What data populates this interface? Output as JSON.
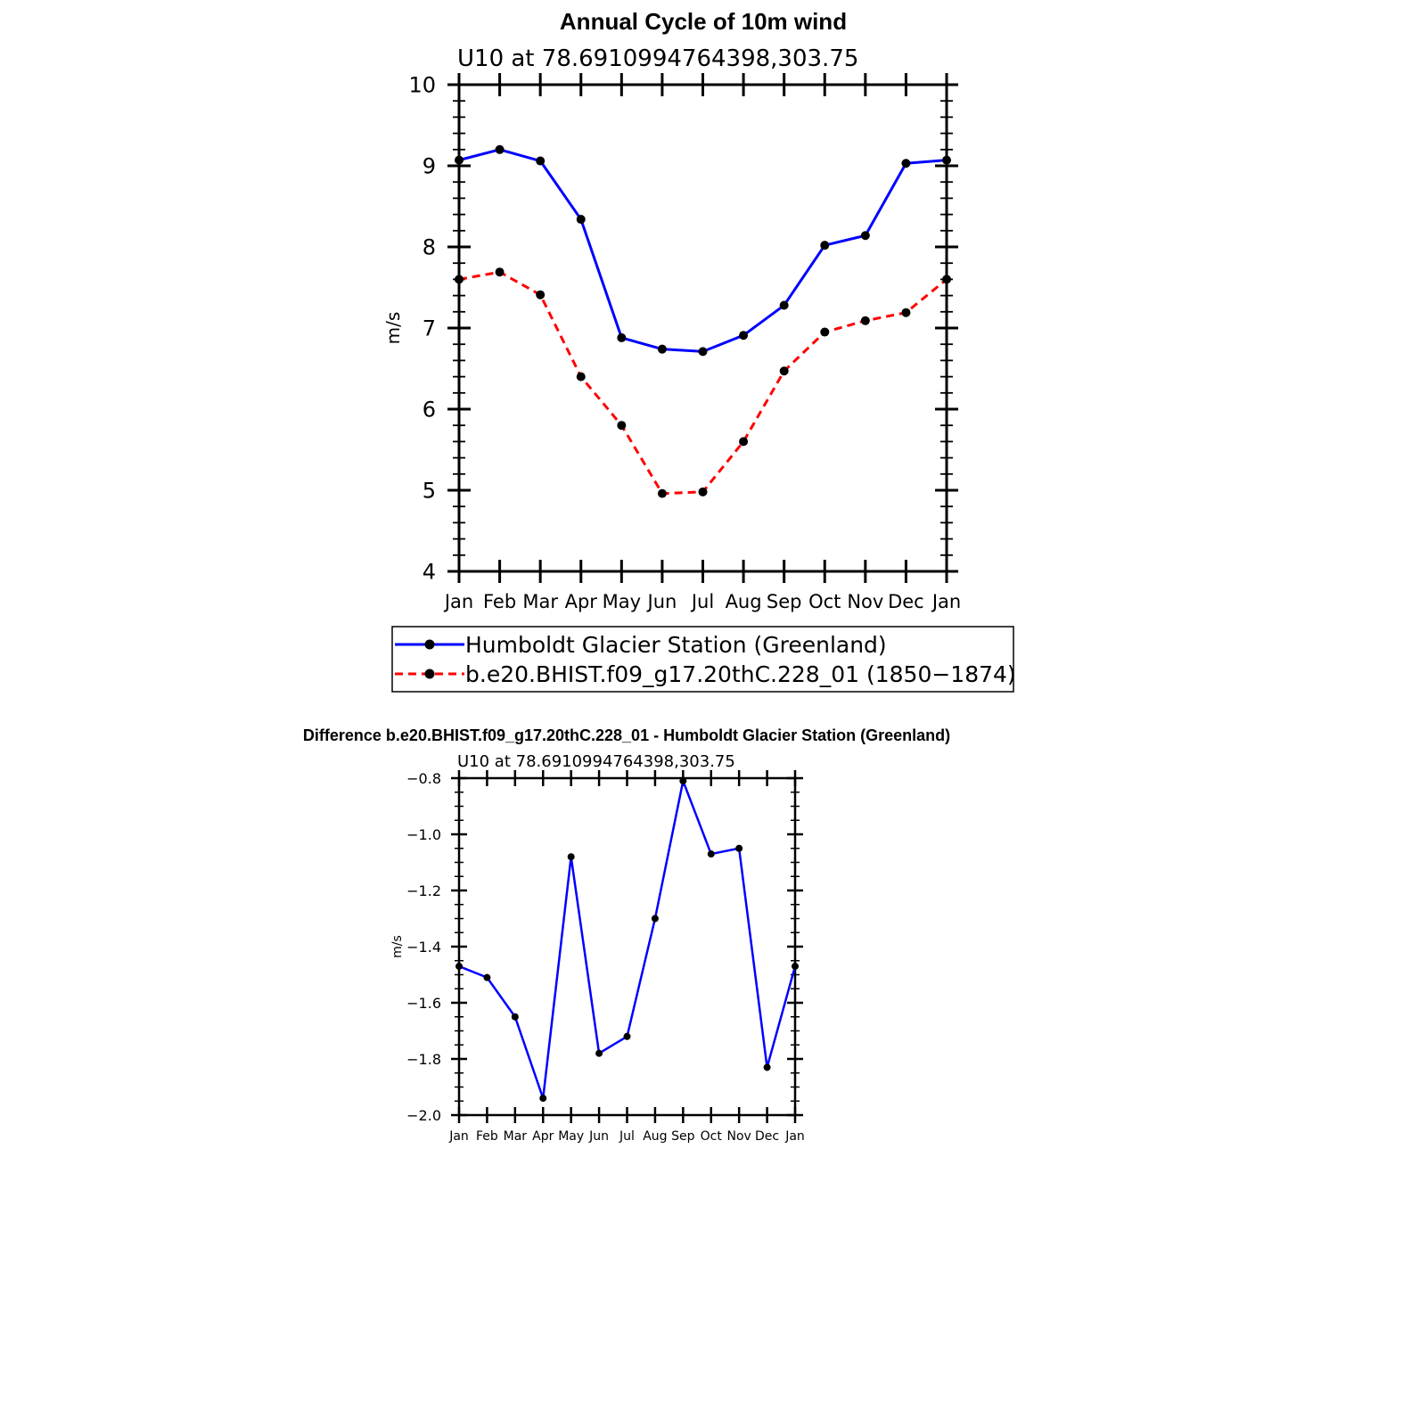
{
  "chart_data": [
    {
      "type": "line",
      "title": "Annual Cycle of 10m wind",
      "subtitle": "U10 at 78.6910994764398,303.75",
      "ylabel": "m/s",
      "ylim": [
        4,
        10
      ],
      "yticks": [
        4,
        5,
        6,
        7,
        8,
        9,
        10
      ],
      "yticklabels": [
        "4",
        "5",
        "6",
        "7",
        "8",
        "9",
        "10"
      ],
      "categories": [
        "Jan",
        "Feb",
        "Mar",
        "Apr",
        "May",
        "Jun",
        "Jul",
        "Aug",
        "Sep",
        "Oct",
        "Nov",
        "Dec",
        "Jan"
      ],
      "legend_position": "below",
      "series": [
        {
          "name": "Humboldt Glacier Station (Greenland)",
          "color": "#0000ff",
          "dash": "solid",
          "values": [
            9.07,
            9.2,
            9.06,
            8.34,
            6.88,
            6.74,
            6.71,
            6.91,
            7.28,
            8.02,
            8.14,
            9.03,
            9.07
          ]
        },
        {
          "name": "b.e20.BHIST.f09_g17.20thC.228_01 (1850−1874)",
          "color": "#ff0000",
          "dash": "dashed",
          "values": [
            7.6,
            7.69,
            7.41,
            6.4,
            5.8,
            4.96,
            4.98,
            5.6,
            6.47,
            6.95,
            7.09,
            7.19,
            7.6
          ]
        }
      ]
    },
    {
      "type": "line",
      "title": "Difference b.e20.BHIST.f09_g17.20thC.228_01 - Humboldt Glacier Station (Greenland)",
      "subtitle": "U10 at 78.6910994764398,303.75",
      "ylabel": "m/s",
      "ylim": [
        -2.0,
        -0.8
      ],
      "yticks": [
        -2.0,
        -1.8,
        -1.6,
        -1.4,
        -1.2,
        -1.0,
        -0.8
      ],
      "yticklabels": [
        "−2.0",
        "−1.8",
        "−1.6",
        "−1.4",
        "−1.2",
        "−1.0",
        "−0.8"
      ],
      "categories": [
        "Jan",
        "Feb",
        "Mar",
        "Apr",
        "May",
        "Jun",
        "Jul",
        "Aug",
        "Sep",
        "Oct",
        "Nov",
        "Dec",
        "Jan"
      ],
      "series": [
        {
          "color": "#0000ff",
          "dash": "solid",
          "values": [
            -1.47,
            -1.51,
            -1.65,
            -1.94,
            -1.08,
            -1.78,
            -1.72,
            -1.3,
            -0.81,
            -1.07,
            -1.05,
            -1.83,
            -1.47
          ]
        }
      ]
    }
  ]
}
